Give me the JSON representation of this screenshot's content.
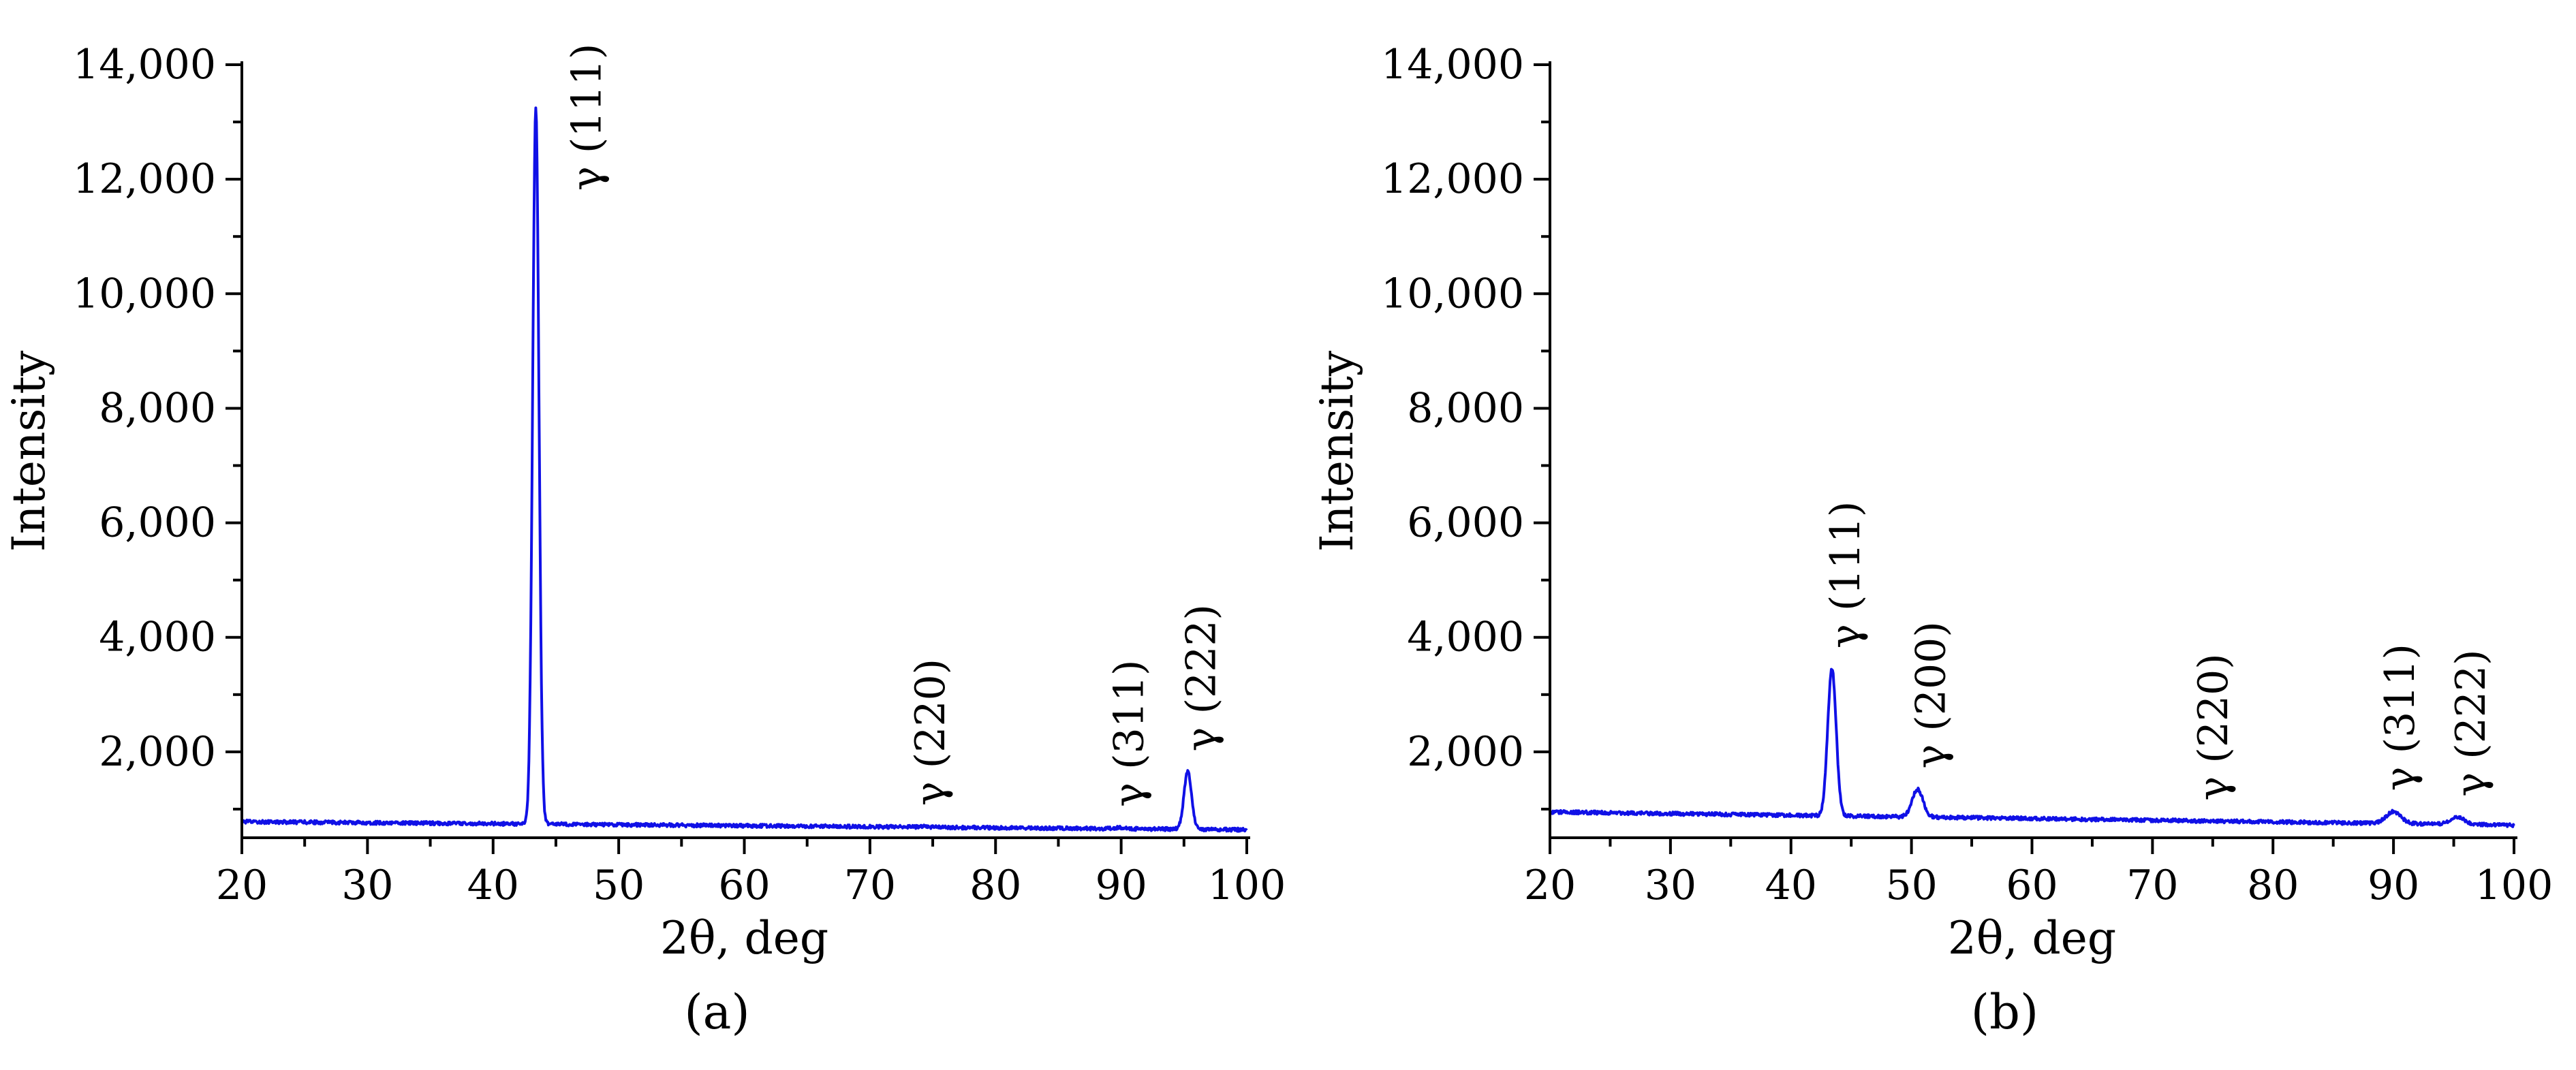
{
  "chart_data": [
    {
      "type": "line",
      "panel_label": "(a)",
      "xlabel": "2θ, deg",
      "ylabel": "Intensity",
      "xlim": [
        20,
        100
      ],
      "ylim": [
        500,
        14000
      ],
      "x_ticks": [
        20,
        30,
        40,
        50,
        60,
        70,
        80,
        90,
        100
      ],
      "x_tick_labels": [
        "20",
        "30",
        "40",
        "50",
        "60",
        "70",
        "80",
        "90",
        "100"
      ],
      "y_ticks": [
        2000,
        4000,
        6000,
        8000,
        10000,
        12000,
        14000
      ],
      "y_tick_labels": [
        "2,000",
        "4,000",
        "6,000",
        "8,000",
        "10,000",
        "12,000",
        "14,000"
      ],
      "grid": false,
      "color": "#1010e6",
      "baseline": {
        "start": 780,
        "end": 640
      },
      "peaks": [
        {
          "x": 43.4,
          "y": 13250,
          "width": 0.25,
          "label": "γ (111)"
        },
        {
          "x": 74.3,
          "y": 700,
          "width": 0.4,
          "label": "γ (220)"
        },
        {
          "x": 90.1,
          "y": 680,
          "width": 0.4,
          "label": "γ (311)"
        },
        {
          "x": 95.3,
          "y": 1650,
          "width": 0.3,
          "label": "γ (222)"
        }
      ]
    },
    {
      "type": "line",
      "panel_label": "(b)",
      "xlabel": "2θ, deg",
      "ylabel": "Intensity",
      "xlim": [
        20,
        100
      ],
      "ylim": [
        500,
        14000
      ],
      "x_ticks": [
        20,
        30,
        40,
        50,
        60,
        70,
        80,
        90,
        100
      ],
      "x_tick_labels": [
        "20",
        "30",
        "40",
        "50",
        "60",
        "70",
        "80",
        "90",
        "100"
      ],
      "y_ticks": [
        2000,
        4000,
        6000,
        8000,
        10000,
        12000,
        14000
      ],
      "y_tick_labels": [
        "2,000",
        "4,000",
        "6,000",
        "8,000",
        "10,000",
        "12,000",
        "14,000"
      ],
      "grid": false,
      "color": "#1010e6",
      "baseline": {
        "start": 950,
        "end": 720
      },
      "peaks": [
        {
          "x": 43.4,
          "y": 3450,
          "width": 0.35,
          "label": "γ (111)"
        },
        {
          "x": 50.5,
          "y": 1350,
          "width": 0.45,
          "label": "γ (200)"
        },
        {
          "x": 74.5,
          "y": 790,
          "width": 0.6,
          "label": "γ (220)"
        },
        {
          "x": 90.0,
          "y": 960,
          "width": 0.6,
          "label": "γ (311)"
        },
        {
          "x": 95.3,
          "y": 860,
          "width": 0.6,
          "label": "γ (222)"
        }
      ]
    }
  ]
}
